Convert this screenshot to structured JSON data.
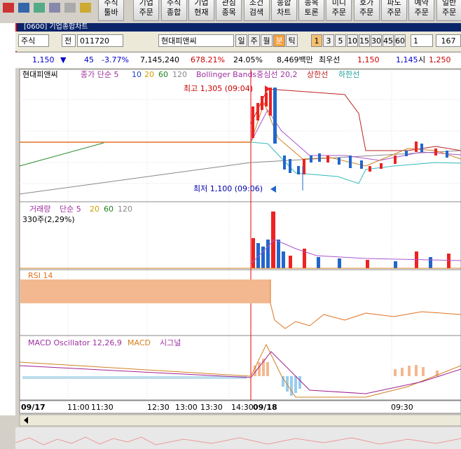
{
  "toolbar": {
    "buttons": [
      [
        "주식",
        "툴바"
      ],
      [
        "기업",
        "주문"
      ],
      [
        "주식",
        "종합"
      ],
      [
        "기업",
        "현재"
      ],
      [
        "관심",
        "종목"
      ],
      [
        "조건",
        "검색"
      ],
      [
        "종합",
        "차트"
      ],
      [
        "종목",
        "토론"
      ],
      [
        "미니",
        "주문"
      ],
      [
        "호가",
        "주문"
      ],
      [
        "파도",
        "주문"
      ],
      [
        "예약",
        "주문"
      ],
      [
        "일반",
        "주문"
      ]
    ]
  },
  "window_title": "[0600] 기업종합차트",
  "controls": {
    "market": "주식",
    "prev": "전",
    "code": "011720",
    "name": "현대피앤씨",
    "periods": [
      "일",
      "주",
      "월",
      "분",
      "틱"
    ],
    "intervals": [
      "1",
      "3",
      "5",
      "10",
      "15",
      "30",
      "45",
      "60"
    ],
    "interval_input": "1",
    "count": "167"
  },
  "quote": {
    "price": "1,150",
    "change_sign": "▼",
    "change": "45",
    "change_rate": "-3.77%",
    "volume": "7,145,240",
    "volume_ratio": "678.21%",
    "turnover": "24.05%",
    "amount": "8,469백만",
    "best_label": "최우선",
    "ask": "1,150",
    "bid": "1,145",
    "open_label": "시",
    "open": "1,250"
  },
  "chart": {
    "price_legend": [
      "현대피앤씨",
      "종가 단순 5",
      "10",
      "20",
      "60",
      "120",
      "Bollinger Bands중심선 20,2",
      "상한선",
      "하한선"
    ],
    "high_label": "최고 1,305 (09:04)",
    "low_label": "최저 1,100 (09:06)",
    "volume_legend": [
      "거래량",
      "단순 5",
      "20",
      "60",
      "120"
    ],
    "volume_note": "330주(2,29%)",
    "rsi_legend": "RSI 14",
    "macd_legend": [
      "MACD Oscillator 12,26,9",
      "MACD",
      "시그널"
    ],
    "x_labels": [
      "09/17",
      "11:00",
      "11:30",
      "12:30",
      "13:00",
      "13:30",
      "14:30",
      "09/18",
      "09:30"
    ]
  }
}
